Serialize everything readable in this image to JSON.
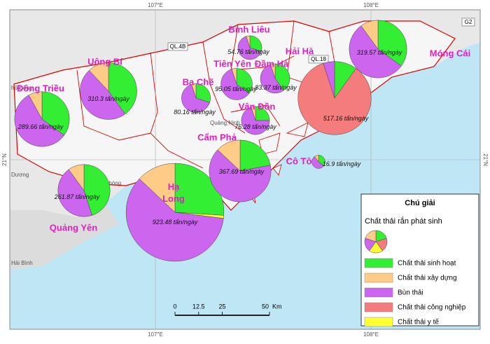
{
  "map": {
    "graticule": {
      "top": [
        "107°E",
        "108°E"
      ],
      "bottom": [
        "107°E",
        "108°E"
      ],
      "left": "21°N",
      "right": "21°N"
    },
    "places": [
      "Quảng Ninh",
      "Phòng",
      "Dương",
      "Hải Bình",
      "hố Đông"
    ],
    "roads": [
      "QL.4B",
      "QL.18",
      "G2"
    ],
    "unit": "tấn/ngày",
    "locations": [
      {
        "name": "Hạ Long",
        "total": 923.48,
        "shares": [
          26,
          13,
          60,
          0,
          1
        ]
      },
      {
        "name": "Cẩm Phả",
        "total": 367.69,
        "shares": [
          22,
          13,
          65,
          0,
          0
        ]
      },
      {
        "name": "Uông Bí",
        "total": 310.3,
        "shares": [
          40,
          12,
          48,
          0,
          0
        ]
      },
      {
        "name": "Đông Triều",
        "total": 289.66,
        "shares": [
          35,
          8,
          57,
          0,
          0
        ]
      },
      {
        "name": "Quảng Yên",
        "total": 261.87,
        "shares": [
          45,
          10,
          45,
          0,
          0
        ]
      },
      {
        "name": "Móng Cái",
        "total": 319.57,
        "shares": [
          35,
          10,
          55,
          0,
          0
        ]
      },
      {
        "name": "Hải Hà",
        "total": 517.16,
        "shares": [
          10,
          0,
          5,
          85,
          0
        ]
      },
      {
        "name": "Vân Đồn",
        "total": 76.28,
        "shares": [
          25,
          5,
          70,
          0,
          0
        ]
      },
      {
        "name": "Bình Liêu",
        "total": 54.76,
        "shares": [
          30,
          5,
          65,
          0,
          0
        ]
      },
      {
        "name": "Tiên Yên",
        "total": 95.05,
        "shares": [
          35,
          5,
          60,
          0,
          0
        ]
      },
      {
        "name": "Đầm Hà",
        "total": 83.37,
        "shares": [
          40,
          5,
          55,
          0,
          0
        ]
      },
      {
        "name": "Ba Chẽ",
        "total": 80.16,
        "shares": [
          30,
          5,
          65,
          0,
          0
        ]
      },
      {
        "name": "Cô Tô",
        "total": 16.9,
        "shares": [
          35,
          10,
          55,
          0,
          0
        ]
      }
    ],
    "legend": {
      "title": "Chú giải",
      "subtitle": "Chất thải rắn phát sinh",
      "items": [
        {
          "label": "Chất thải sinh hoạt",
          "color": "#33ee33"
        },
        {
          "label": "Chất thải xây dựng",
          "color": "#ffcc88"
        },
        {
          "label": "Bùn thải",
          "color": "#cc66ee"
        },
        {
          "label": "Chất thải công nghiệp",
          "color": "#f47c7c"
        },
        {
          "label": "Chất thải y tế",
          "color": "#ffff33"
        }
      ]
    },
    "scale_bar": {
      "ticks": [
        0,
        12.5,
        25,
        50
      ],
      "unit": "Km"
    }
  }
}
